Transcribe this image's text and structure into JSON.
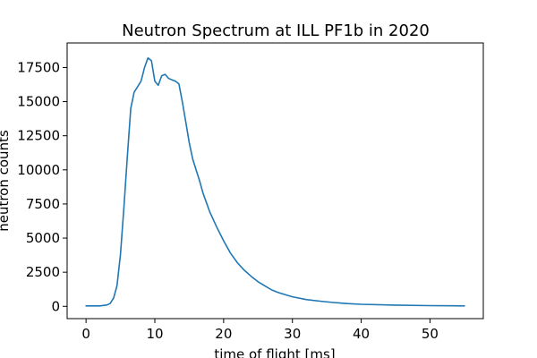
{
  "chart_data": {
    "type": "line",
    "title": "Neutron Spectrum at ILL PF1b in 2020",
    "xlabel": "time of flight [ms]",
    "ylabel": "neutron counts",
    "xlim": [
      -2.75,
      57.75
    ],
    "ylim": [
      -900,
      19300
    ],
    "xticks": [
      0,
      10,
      20,
      30,
      40,
      50
    ],
    "yticks": [
      0,
      2500,
      5000,
      7500,
      10000,
      12500,
      15000,
      17500
    ],
    "grid": false,
    "legend": "none",
    "series": [
      {
        "color": "#1f77b4",
        "x": [
          0,
          2,
          3,
          3.5,
          4,
          4.5,
          5,
          5.5,
          6,
          6.5,
          7,
          7.5,
          8,
          8.5,
          9,
          9.5,
          10,
          10.5,
          11,
          11.5,
          12,
          12.5,
          13,
          13.5,
          14,
          14.5,
          15,
          15.5,
          16,
          16.5,
          17,
          18,
          19,
          20,
          21,
          22,
          23,
          24,
          25,
          26,
          27,
          28,
          30,
          32,
          34,
          36,
          38,
          40,
          45,
          50,
          55
        ],
        "y": [
          30,
          30,
          100,
          200,
          600,
          1500,
          3800,
          7200,
          11000,
          14500,
          15700,
          16100,
          16500,
          17500,
          18200,
          18000,
          16500,
          16200,
          16900,
          17000,
          16700,
          16600,
          16500,
          16300,
          15000,
          13500,
          12000,
          10800,
          10000,
          9200,
          8300,
          6900,
          5800,
          4800,
          3900,
          3200,
          2650,
          2200,
          1800,
          1500,
          1200,
          1000,
          700,
          500,
          380,
          280,
          200,
          150,
          90,
          50,
          30
        ]
      }
    ]
  }
}
